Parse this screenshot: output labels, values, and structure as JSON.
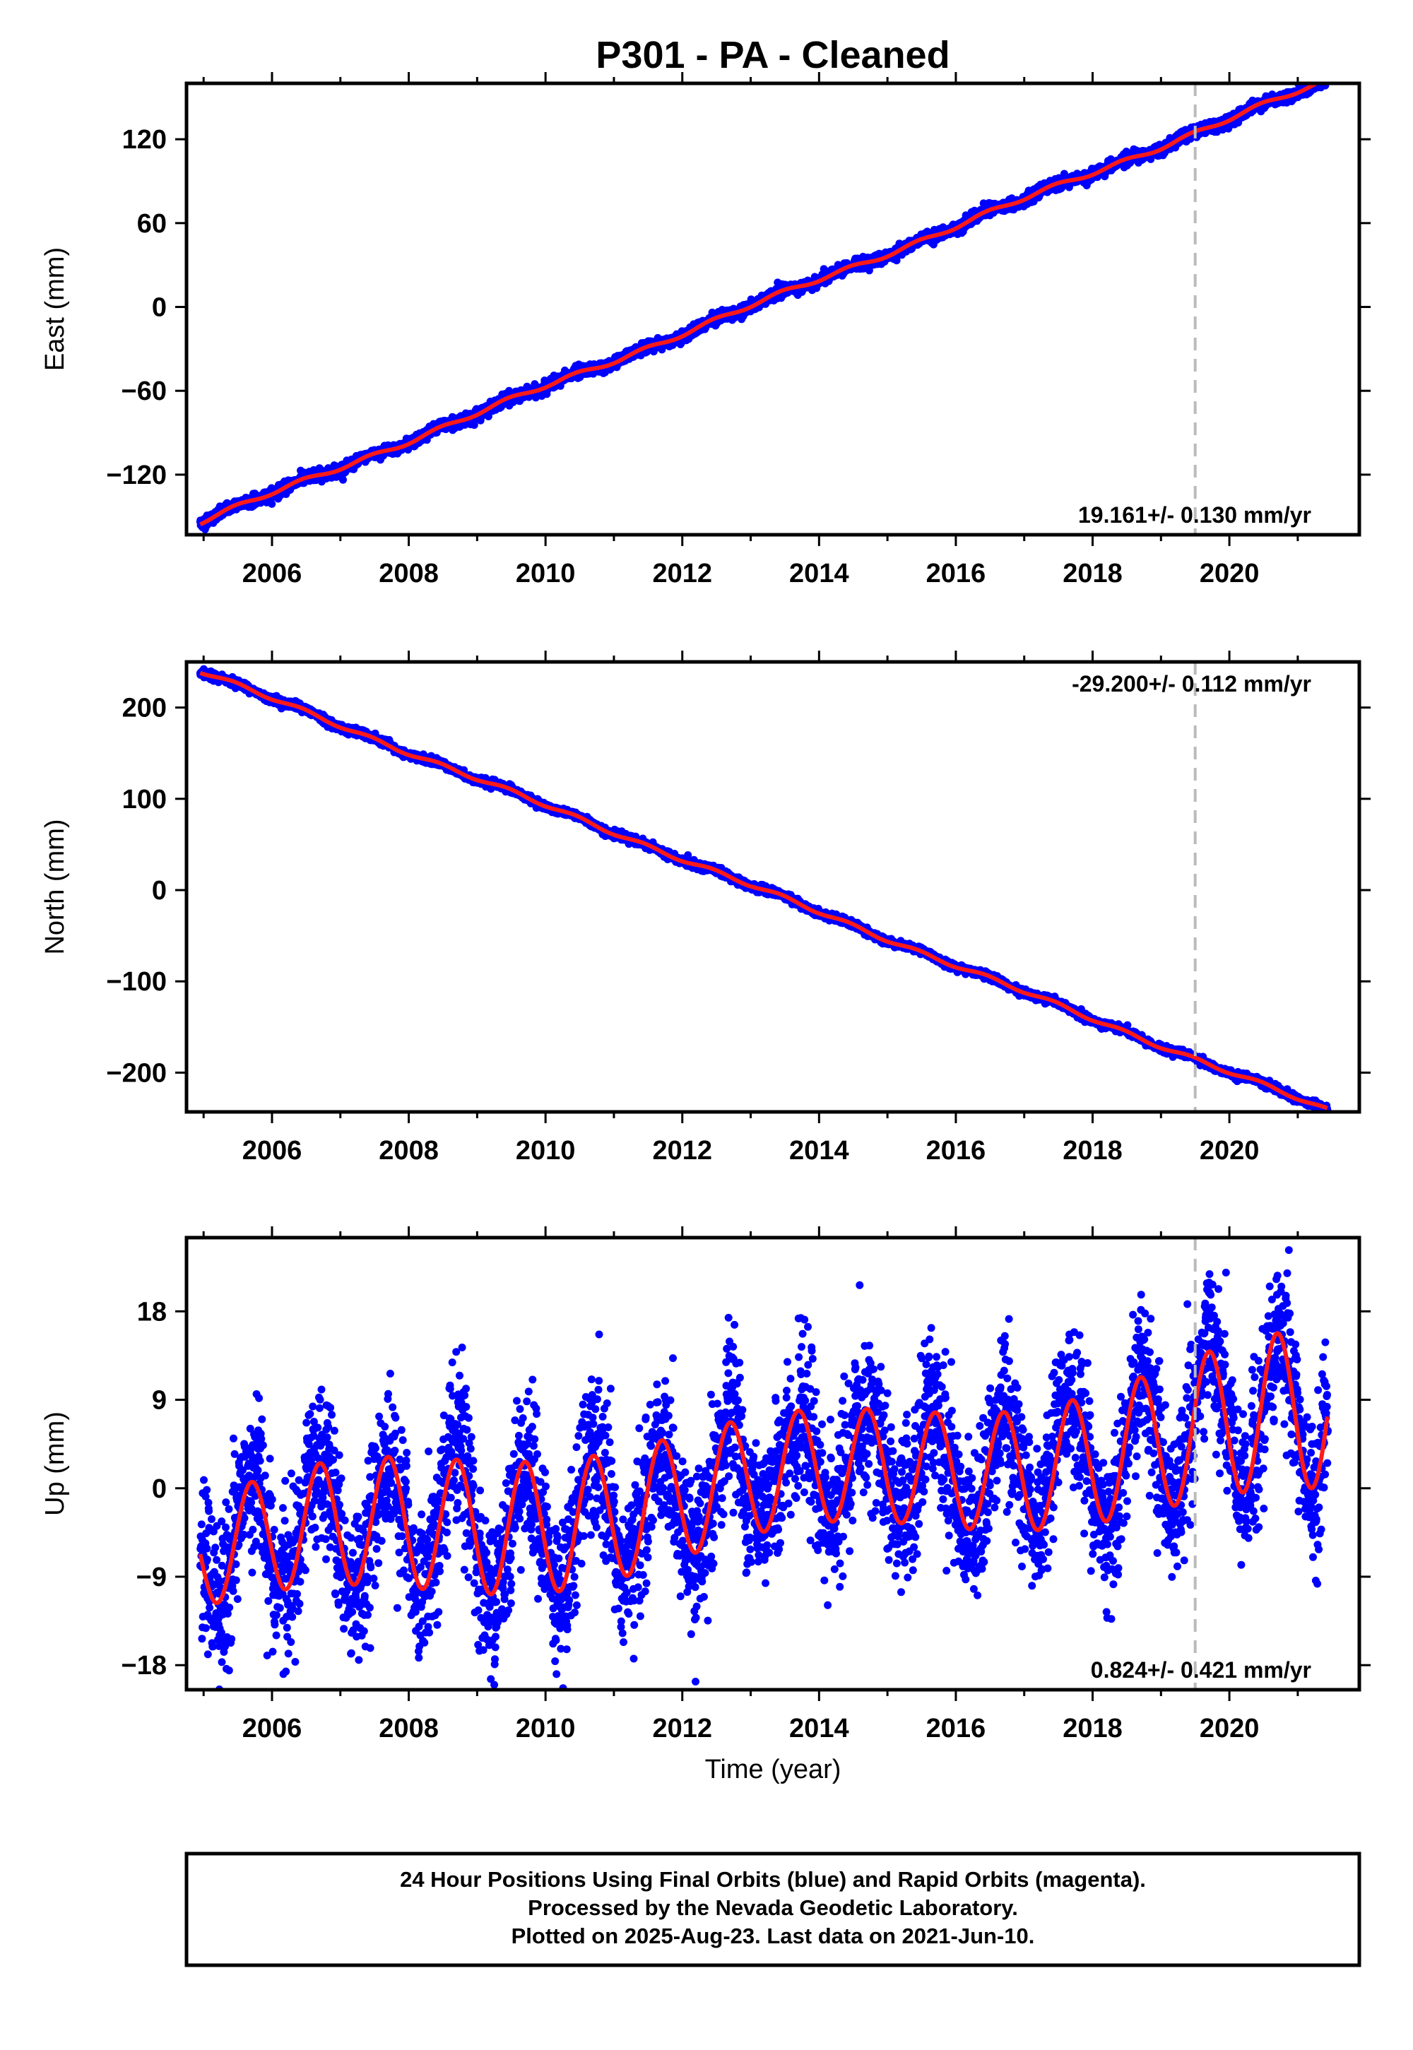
{
  "title": "P301  - PA - Cleaned",
  "colors": {
    "data": "#0000ff",
    "model": "#ff1a1a",
    "marker": "#bbbbbb",
    "frame": "#000000"
  },
  "footer": {
    "line1": "24 Hour Positions Using Final Orbits (blue) and Rapid Orbits (magenta).",
    "line2": "Processed by the Nevada Geodetic Laboratory.",
    "line3": "Plotted on 2025-Aug-23. Last data on 2021-Jun-10."
  },
  "chart_data": [
    {
      "type": "scatter",
      "ylabel": "East (mm)",
      "xlabel": "",
      "xlim": [
        2004.75,
        2021.9
      ],
      "ylim": [
        -163,
        160
      ],
      "x_ticks": [
        "2006",
        "2008",
        "2010",
        "2012",
        "2014",
        "2016",
        "2018",
        "2020"
      ],
      "y_ticks": [
        "120",
        "60",
        "0",
        "−60",
        "−120"
      ],
      "y_tick_values": [
        120,
        60,
        0,
        -60,
        -120
      ],
      "rate_label": "19.161+/- 0.130 mm/yr",
      "rate_position": "bottom-right",
      "marker_year": 2019.5,
      "data_start": 2004.95,
      "data_end": 2021.44,
      "trend_per_year": 19.161,
      "value_at_start": -154,
      "seasonal_amplitude": 1.5,
      "scatter_noise": 2.0,
      "series": [
        {
          "name": "positions",
          "style": "points"
        },
        {
          "name": "model",
          "style": "line"
        }
      ]
    },
    {
      "type": "scatter",
      "ylabel": "North (mm)",
      "xlabel": "",
      "xlim": [
        2004.75,
        2021.9
      ],
      "ylim": [
        -243,
        250
      ],
      "x_ticks": [
        "2006",
        "2008",
        "2010",
        "2012",
        "2014",
        "2016",
        "2018",
        "2020"
      ],
      "y_ticks": [
        "200",
        "100",
        "0",
        "−100",
        "−200"
      ],
      "y_tick_values": [
        200,
        100,
        0,
        -100,
        -200
      ],
      "rate_label": "-29.200+/- 0.112 mm/yr",
      "rate_position": "top-right",
      "marker_year": 2019.5,
      "data_start": 2004.95,
      "data_end": 2021.44,
      "trend_per_year": -29.2,
      "value_at_start": 240,
      "seasonal_amplitude": 2.0,
      "scatter_noise": 2.0,
      "series": [
        {
          "name": "positions",
          "style": "points"
        },
        {
          "name": "model",
          "style": "line"
        }
      ]
    },
    {
      "type": "scatter",
      "ylabel": "Up (mm)",
      "xlabel": "Time (year)",
      "xlim": [
        2004.75,
        2021.9
      ],
      "ylim": [
        -20.5,
        25.5
      ],
      "x_ticks": [
        "2006",
        "2008",
        "2010",
        "2012",
        "2014",
        "2016",
        "2018",
        "2020"
      ],
      "y_ticks": [
        "18",
        "9",
        "0",
        "−9",
        "−18"
      ],
      "y_tick_values": [
        18,
        9,
        0,
        -9,
        -18
      ],
      "rate_label": "0.824+/- 0.421 mm/yr",
      "rate_position": "bottom-right",
      "marker_year": 2019.5,
      "data_start": 2004.95,
      "data_end": 2021.44,
      "trend_per_year": 0.824,
      "value_at_start": -4.8,
      "seasonal_amplitude": 6.0,
      "scatter_noise": 3.6,
      "series": [
        {
          "name": "positions",
          "style": "points"
        },
        {
          "name": "model",
          "style": "line"
        }
      ]
    }
  ]
}
